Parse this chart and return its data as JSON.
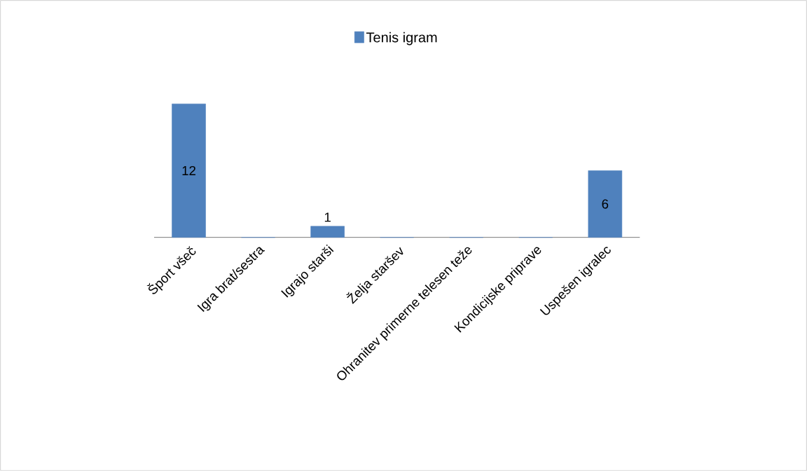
{
  "chart_data": {
    "type": "bar",
    "categories": [
      "Šport všeč",
      "Igra brat/sestra",
      "Igrajo starši",
      "Želja staršev",
      "Ohranitev primerne telesen teže",
      "Kondicijske priprave",
      "Uspešen igralec"
    ],
    "series": [
      {
        "name": "Tenis igram",
        "color": "#4f81bd",
        "values": [
          12,
          0,
          1,
          0,
          0,
          0,
          6
        ],
        "value_labels": [
          "12",
          null,
          "1",
          null,
          null,
          null,
          "6"
        ]
      }
    ],
    "legend": "top"
  }
}
